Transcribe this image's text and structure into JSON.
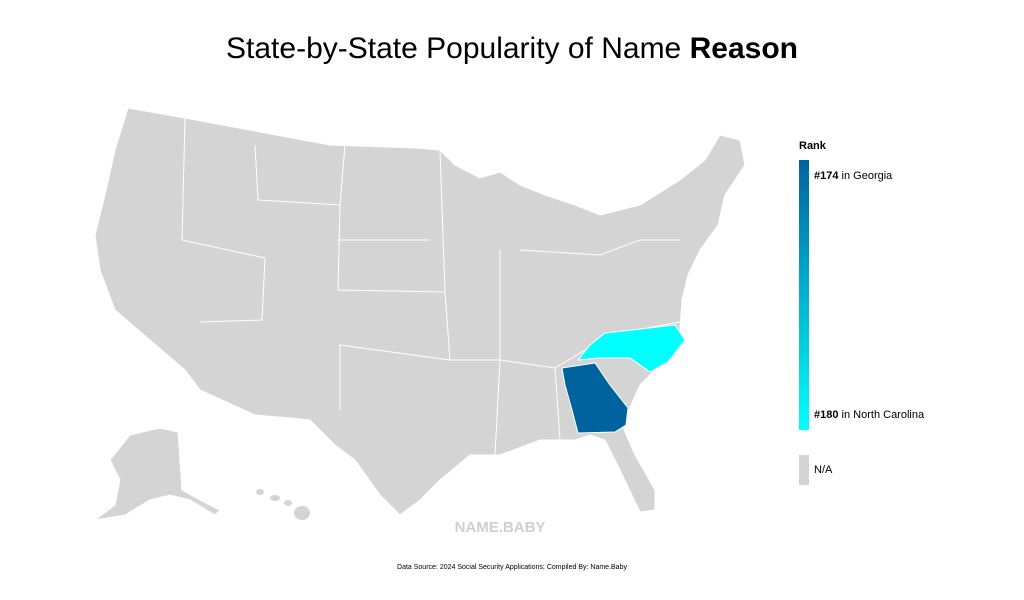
{
  "header": {
    "title": "State-by-State Popularity of Name ",
    "name": "Reason"
  },
  "legend": {
    "title": "Rank",
    "entries": [
      {
        "rank": "#174",
        "label": "in Georgia",
        "color": "#00639e"
      },
      {
        "rank": "#180",
        "label": "in North Carolina",
        "color": "#00ffff"
      }
    ],
    "na": {
      "label": "N/A",
      "color": "#d4d4d4"
    }
  },
  "watermark": "NAME.BABY",
  "footer": "Data Source: 2024 Social Security Applications; Compiled By: Name.Baby"
}
